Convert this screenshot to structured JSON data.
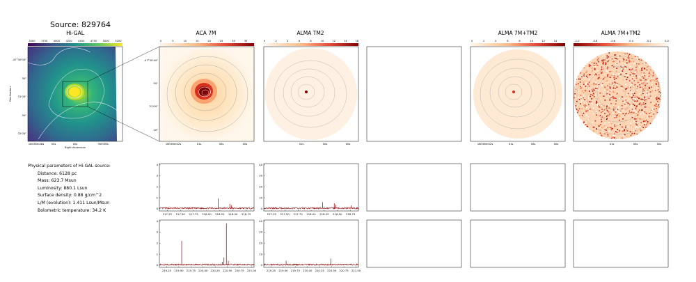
{
  "source_title": "Source: 829764",
  "panels": {
    "higal": {
      "title": "Hi-GAL",
      "colorbar_ticks": [
        "3500",
        "3750",
        "4000",
        "4250",
        "4500",
        "4750",
        "5000",
        "5250"
      ],
      "ylabel": "Declination",
      "xlabel": "Right Ascension",
      "yticks": [
        "-47°30'00\"",
        "30\"",
        "31'00\"",
        "30\"",
        "32'00\""
      ],
      "xticks": [
        "16h36m08s",
        "04s",
        "00s",
        "35m56s"
      ]
    },
    "aca7m": {
      "title": "ACA 7M",
      "colorbar_ticks": [
        "0",
        "5",
        "10",
        "15",
        "20",
        "25",
        "30",
        "35"
      ],
      "yticks": [
        "-47°30'40\"",
        "50\"",
        "31'00\"",
        "10\""
      ],
      "xticks": [
        "16h36m02s",
        "01s",
        "00s",
        "00s"
      ]
    },
    "almatm2": {
      "title": "ALMA TM2",
      "colorbar_ticks": [
        "0",
        "2",
        "4",
        "6",
        "8",
        "10",
        "12",
        "14",
        "16"
      ],
      "xticks": [
        "01s",
        "00s",
        "00s"
      ]
    },
    "alma7mtm2_a": {
      "title": "ALMA 7M+TM2",
      "colorbar_ticks": [
        "0",
        "2",
        "4",
        "6",
        "8",
        "10",
        "12",
        "14"
      ],
      "xticks": [
        "16h36m02s",
        "01s",
        "00s",
        "00s"
      ]
    },
    "alma7mtm2_b": {
      "title": "ALMA 7M+TM2",
      "colorbar_ticks": [
        "-1.0",
        "-0.8",
        "-0.6",
        "-0.4",
        "-0.2",
        "0.0"
      ],
      "xticks": [
        "01s",
        "00s",
        "00s"
      ]
    }
  },
  "parameters": {
    "heading": "Physical parameters of Hi-GAL source:",
    "lines": [
      "Distance: 6128 pc",
      "Mass: 623.7 Msun",
      "Luminosity: 880.1 Lsun",
      "Surface density: 0.88 g/cm^2",
      "L/M (evolution): 1.411 Lsun/Msun",
      "Bolometric temperature: 34.2 K"
    ]
  },
  "chart_data": [
    {
      "type": "line",
      "name": "aca-spectrum-1",
      "xticks": [
        "217.25",
        "217.50",
        "217.75",
        "218.00",
        "218.25",
        "218.50",
        "218.75"
      ],
      "xlim": [
        217.1,
        218.9
      ],
      "yticks": [
        "0",
        "1",
        "2",
        "3",
        "4"
      ],
      "ylim": [
        -0.2,
        4.1
      ],
      "peaks": [
        [
          218.22,
          0.95
        ],
        [
          218.44,
          0.45
        ],
        [
          218.47,
          0.3
        ]
      ],
      "baseline": 0.05
    },
    {
      "type": "line",
      "name": "tm2-spectrum-1",
      "xticks": [
        "217.25",
        "217.50",
        "217.75",
        "218.00",
        "218.25",
        "218.50",
        "218.75"
      ],
      "xlim": [
        217.1,
        218.9
      ],
      "yticks": [
        "0",
        "10",
        "20",
        "30",
        "40"
      ],
      "ylim": [
        -2,
        41
      ],
      "peaks": [
        [
          218.22,
          6
        ],
        [
          218.44,
          5
        ],
        [
          218.47,
          3.5
        ],
        [
          218.76,
          3
        ]
      ],
      "baseline": 0.5
    },
    {
      "type": "line",
      "name": "aca-spectrum-2",
      "xticks": [
        "219.25",
        "219.50",
        "219.75",
        "220.00",
        "220.25",
        "220.50",
        "220.75",
        "221.00"
      ],
      "xlim": [
        219.1,
        221.05
      ],
      "yticks": [
        "0",
        "1",
        "2",
        "3",
        "4"
      ],
      "ylim": [
        -0.2,
        4.1
      ],
      "peaks": [
        [
          219.56,
          2.2
        ],
        [
          220.4,
          0.3
        ],
        [
          220.43,
          0.7
        ],
        [
          220.48,
          3.8
        ],
        [
          220.52,
          0.4
        ]
      ],
      "baseline": 0.05
    },
    {
      "type": "line",
      "name": "tm2-spectrum-2",
      "xticks": [
        "219.25",
        "219.50",
        "219.75",
        "220.00",
        "220.25",
        "220.50",
        "220.75",
        "221.00"
      ],
      "xlim": [
        219.1,
        221.05
      ],
      "yticks": [
        "0",
        "10",
        "20",
        "30",
        "40"
      ],
      "ylim": [
        -2,
        41
      ],
      "peaks": [
        [
          219.56,
          4
        ],
        [
          220.48,
          6
        ]
      ],
      "baseline": 0.5
    }
  ]
}
